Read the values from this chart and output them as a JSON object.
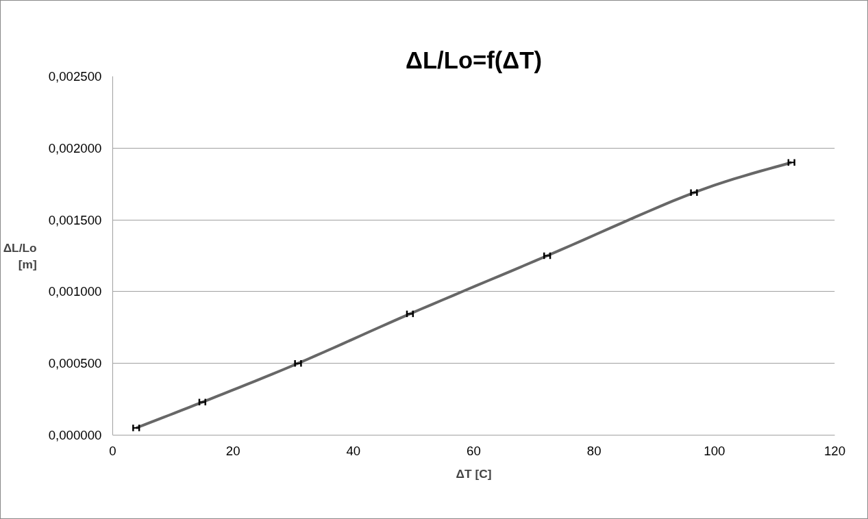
{
  "chart_data": {
    "type": "line",
    "title": "ΔL/Lo=f(ΔT)",
    "xlabel": "ΔT [C]",
    "ylabel": "ΔL/Lo\n[m]",
    "x": [
      3.9,
      14.9,
      30.8,
      49.4,
      72.2,
      96.6,
      112.8
    ],
    "series": [
      {
        "color": "#676767",
        "values": [
          5e-05,
          0.00023,
          0.0005,
          0.000845,
          0.00125,
          0.00169,
          0.0019
        ],
        "xerrors": [
          0.5,
          0.5,
          0.5,
          0.5,
          0.5,
          0.5,
          0.5
        ]
      }
    ],
    "xlim": [
      0,
      120
    ],
    "xticks": [
      0,
      20,
      40,
      60,
      80,
      100,
      120
    ],
    "ylim": [
      0,
      0.0025
    ],
    "yticks": [
      {
        "value": 0,
        "label": "0,000000"
      },
      {
        "value": 0.0005,
        "label": "0,000500"
      },
      {
        "value": 0.001,
        "label": "0,001000"
      },
      {
        "value": 0.0015,
        "label": "0,001500"
      },
      {
        "value": 0.002,
        "label": "0,002000"
      },
      {
        "value": 0.0025,
        "label": "0,002500"
      }
    ],
    "grid": "y",
    "marker": "none",
    "line_style": "solid"
  }
}
